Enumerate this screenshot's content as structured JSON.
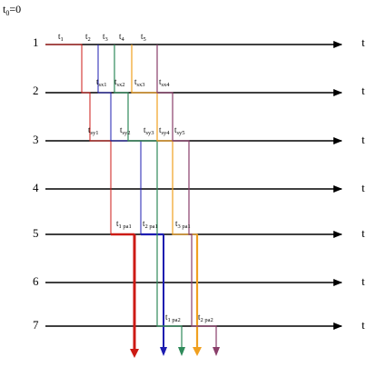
{
  "origin": {
    "main": "t",
    "sub": "0",
    "rest": "=0"
  },
  "rows": [
    {
      "num": "1",
      "axis": "t"
    },
    {
      "num": "2",
      "axis": "t"
    },
    {
      "num": "3",
      "axis": "t"
    },
    {
      "num": "4",
      "axis": "t"
    },
    {
      "num": "5",
      "axis": "t"
    },
    {
      "num": "6",
      "axis": "t"
    },
    {
      "num": "7",
      "axis": "t"
    }
  ],
  "time_marks": [
    {
      "id": "t1",
      "main": "t",
      "sub": "1"
    },
    {
      "id": "t2",
      "main": "t",
      "sub": "2"
    },
    {
      "id": "t3",
      "main": "t",
      "sub": "3"
    },
    {
      "id": "t4",
      "main": "t",
      "sub": "4"
    },
    {
      "id": "t5",
      "main": "t",
      "sub": "5"
    },
    {
      "id": "tsx1",
      "main": "t",
      "sub": "sx1"
    },
    {
      "id": "tsx2",
      "main": "t",
      "sub": "sx2"
    },
    {
      "id": "tsx3",
      "main": "t",
      "sub": "sx3"
    },
    {
      "id": "tsx4",
      "main": "t",
      "sub": "sx4"
    },
    {
      "id": "tsy1",
      "main": "t",
      "sub": "sy1"
    },
    {
      "id": "tsy2",
      "main": "t",
      "sub": "sy2"
    },
    {
      "id": "tsy3",
      "main": "t",
      "sub": "sy3"
    },
    {
      "id": "tsy4",
      "main": "t",
      "sub": "sy4"
    },
    {
      "id": "tsy5",
      "main": "t",
      "sub": "sy5"
    },
    {
      "id": "t1pa1",
      "main": "t",
      "sub": "1 pa1"
    },
    {
      "id": "t2pa1",
      "main": "t",
      "sub": "2 pa1"
    },
    {
      "id": "t3pa1",
      "main": "t",
      "sub": "3 pa1"
    },
    {
      "id": "t1pa2",
      "main": "t",
      "sub": "1 pa2"
    },
    {
      "id": "t2pa2",
      "main": "t",
      "sub": "2 pa2"
    }
  ],
  "path_colors": {
    "red": "#cc1a14",
    "blue": "#1c1cb0",
    "green": "#2f8a5a",
    "orange": "#f0a020",
    "purple": "#8a3e6a"
  }
}
